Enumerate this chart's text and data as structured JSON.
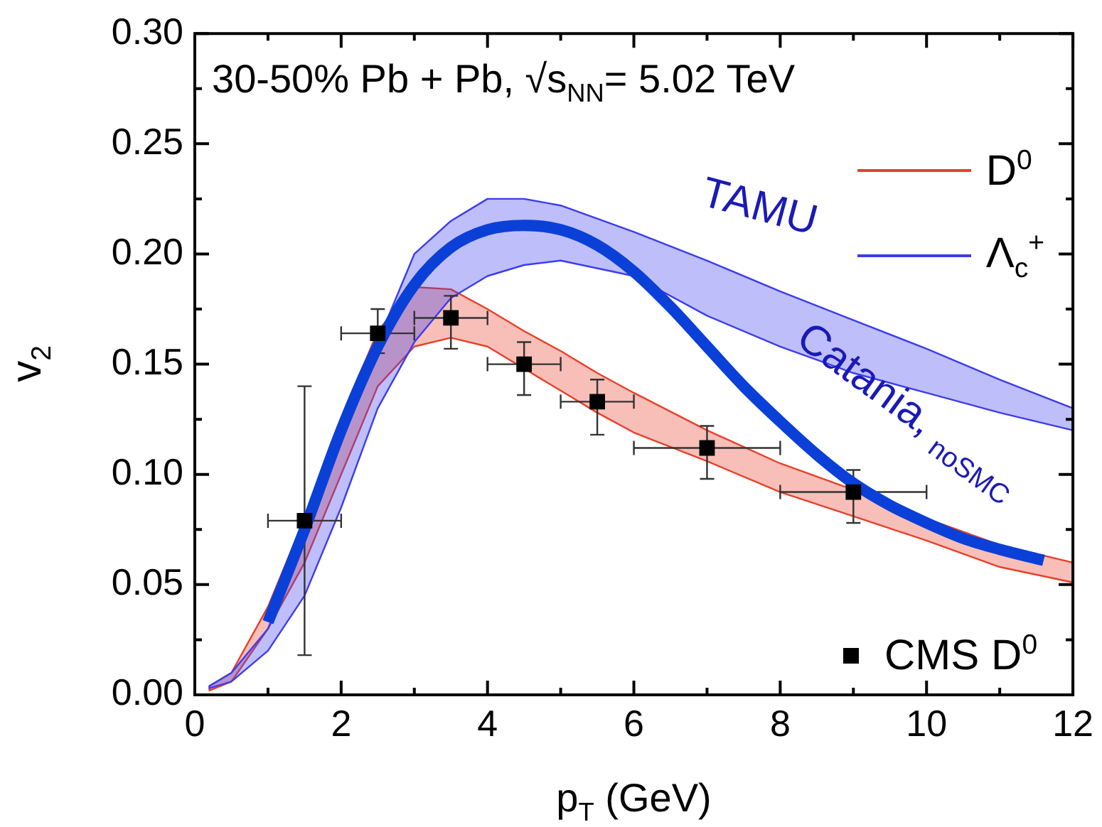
{
  "chart_data": {
    "type": "line",
    "xlabel": "p$_{T}$ (GeV)",
    "ylabel": "v$_{2}$",
    "xlim": [
      0,
      12
    ],
    "ylim": [
      0,
      0.3
    ],
    "xticks": [
      0,
      {
        "value": 1,
        "label": null
      },
      2,
      {
        "value": 3,
        "label": null
      },
      4,
      {
        "value": 5,
        "label": null
      },
      6,
      {
        "value": 7,
        "label": null
      },
      8,
      {
        "value": 9,
        "label": null
      },
      10,
      {
        "value": 11,
        "label": null
      },
      12
    ],
    "yticks": [
      {
        "value": 0,
        "label": "0.00"
      },
      {
        "value": 0.025,
        "label": null
      },
      {
        "value": 0.05,
        "label": "0.05"
      },
      {
        "value": 0.075,
        "label": null
      },
      {
        "value": 0.1,
        "label": "0.10"
      },
      {
        "value": 0.125,
        "label": null
      },
      {
        "value": 0.15,
        "label": "0.15"
      },
      {
        "value": 0.175,
        "label": null
      },
      {
        "value": 0.2,
        "label": "0.20"
      },
      {
        "value": 0.225,
        "label": null
      },
      {
        "value": 0.25,
        "label": "0.25"
      },
      {
        "value": 0.275,
        "label": null
      },
      {
        "value": 0.3,
        "label": "0.30"
      }
    ],
    "grid": false,
    "legend": "right",
    "annotations": [
      "30-50% Pb + Pb, √s$_{NN}$= 5.02 TeV",
      "TAMU",
      "Catania, $_{noSMC}$"
    ],
    "series": [
      {
        "type": "area",
        "name": "D$^{0}$",
        "color": "#e8402a",
        "x": [
          0.2,
          0.5,
          1,
          1.5,
          2,
          2.5,
          3,
          3.5,
          4,
          4.5,
          5,
          5.5,
          6,
          7,
          8,
          9,
          10,
          11,
          12
        ],
        "values": [
          null,
          null,
          null,
          null,
          null,
          null,
          null,
          null,
          null,
          null,
          null,
          null,
          null,
          null,
          null,
          null,
          null,
          null,
          null
        ],
        "lower": [
          0.002,
          0.006,
          0.03,
          0.06,
          0.1,
          0.14,
          0.158,
          0.162,
          0.158,
          0.148,
          0.138,
          0.128,
          0.119,
          0.106,
          0.092,
          0.081,
          0.07,
          0.058,
          0.051
        ],
        "upper": [
          0.004,
          0.01,
          0.04,
          0.08,
          0.125,
          0.165,
          0.185,
          0.184,
          0.175,
          0.165,
          0.156,
          0.146,
          0.137,
          0.12,
          0.105,
          0.093,
          0.08,
          0.068,
          0.06
        ]
      },
      {
        "type": "area",
        "name": "Λ$_{c}$$^{+}$",
        "color": "#3c3cf0",
        "x": [
          0.2,
          0.5,
          1,
          1.5,
          2,
          2.5,
          3,
          3.5,
          4,
          4.5,
          5,
          6,
          7,
          8,
          9,
          10,
          11,
          12
        ],
        "values": [
          null,
          null,
          null,
          null,
          null,
          null,
          null,
          null,
          null,
          null,
          null,
          null,
          null,
          null,
          null,
          null,
          null,
          null
        ],
        "lower": [
          0.003,
          0.006,
          0.02,
          0.045,
          0.085,
          0.13,
          0.16,
          0.18,
          0.19,
          0.195,
          0.197,
          0.19,
          0.172,
          0.158,
          0.146,
          0.137,
          0.128,
          0.12
        ],
        "upper": [
          0.004,
          0.01,
          0.03,
          0.07,
          0.12,
          0.16,
          0.2,
          0.215,
          0.225,
          0.225,
          0.222,
          0.21,
          0.197,
          0.183,
          0.17,
          0.157,
          0.143,
          0.13
        ]
      },
      {
        "color": "#0b40d8",
        "x": [
          1,
          1.5,
          2,
          2.5,
          3,
          3.5,
          4,
          4.5,
          5,
          5.5,
          6,
          6.5,
          7,
          7.5,
          8,
          8.5,
          9,
          9.5,
          10,
          10.5,
          11,
          11.6
        ],
        "values": [
          0.033,
          0.075,
          0.12,
          0.158,
          0.186,
          0.203,
          0.211,
          0.213,
          0.211,
          0.204,
          0.192,
          0.176,
          0.158,
          0.14,
          0.124,
          0.109,
          0.096,
          0.086,
          0.078,
          0.071,
          0.066,
          0.061
        ]
      },
      {
        "type": "scatter",
        "name": "CMS D$^{0}$",
        "color": "#000000",
        "marker": "square",
        "x": [
          1.5,
          2.5,
          3.5,
          4.5,
          5.5,
          7,
          9
        ],
        "values": [
          0.079,
          0.164,
          0.171,
          0.15,
          0.133,
          0.112,
          0.092
        ],
        "errors": [
          [
            0.018,
            0.14
          ],
          [
            0.155,
            0.175
          ],
          [
            0.157,
            0.181
          ],
          [
            0.136,
            0.16
          ],
          [
            0.118,
            0.143
          ],
          [
            0.098,
            0.122
          ],
          [
            0.078,
            0.102
          ]
        ],
        "xerrors": [
          0.5,
          0.5,
          0.5,
          0.5,
          0.5,
          1,
          1
        ]
      }
    ]
  }
}
